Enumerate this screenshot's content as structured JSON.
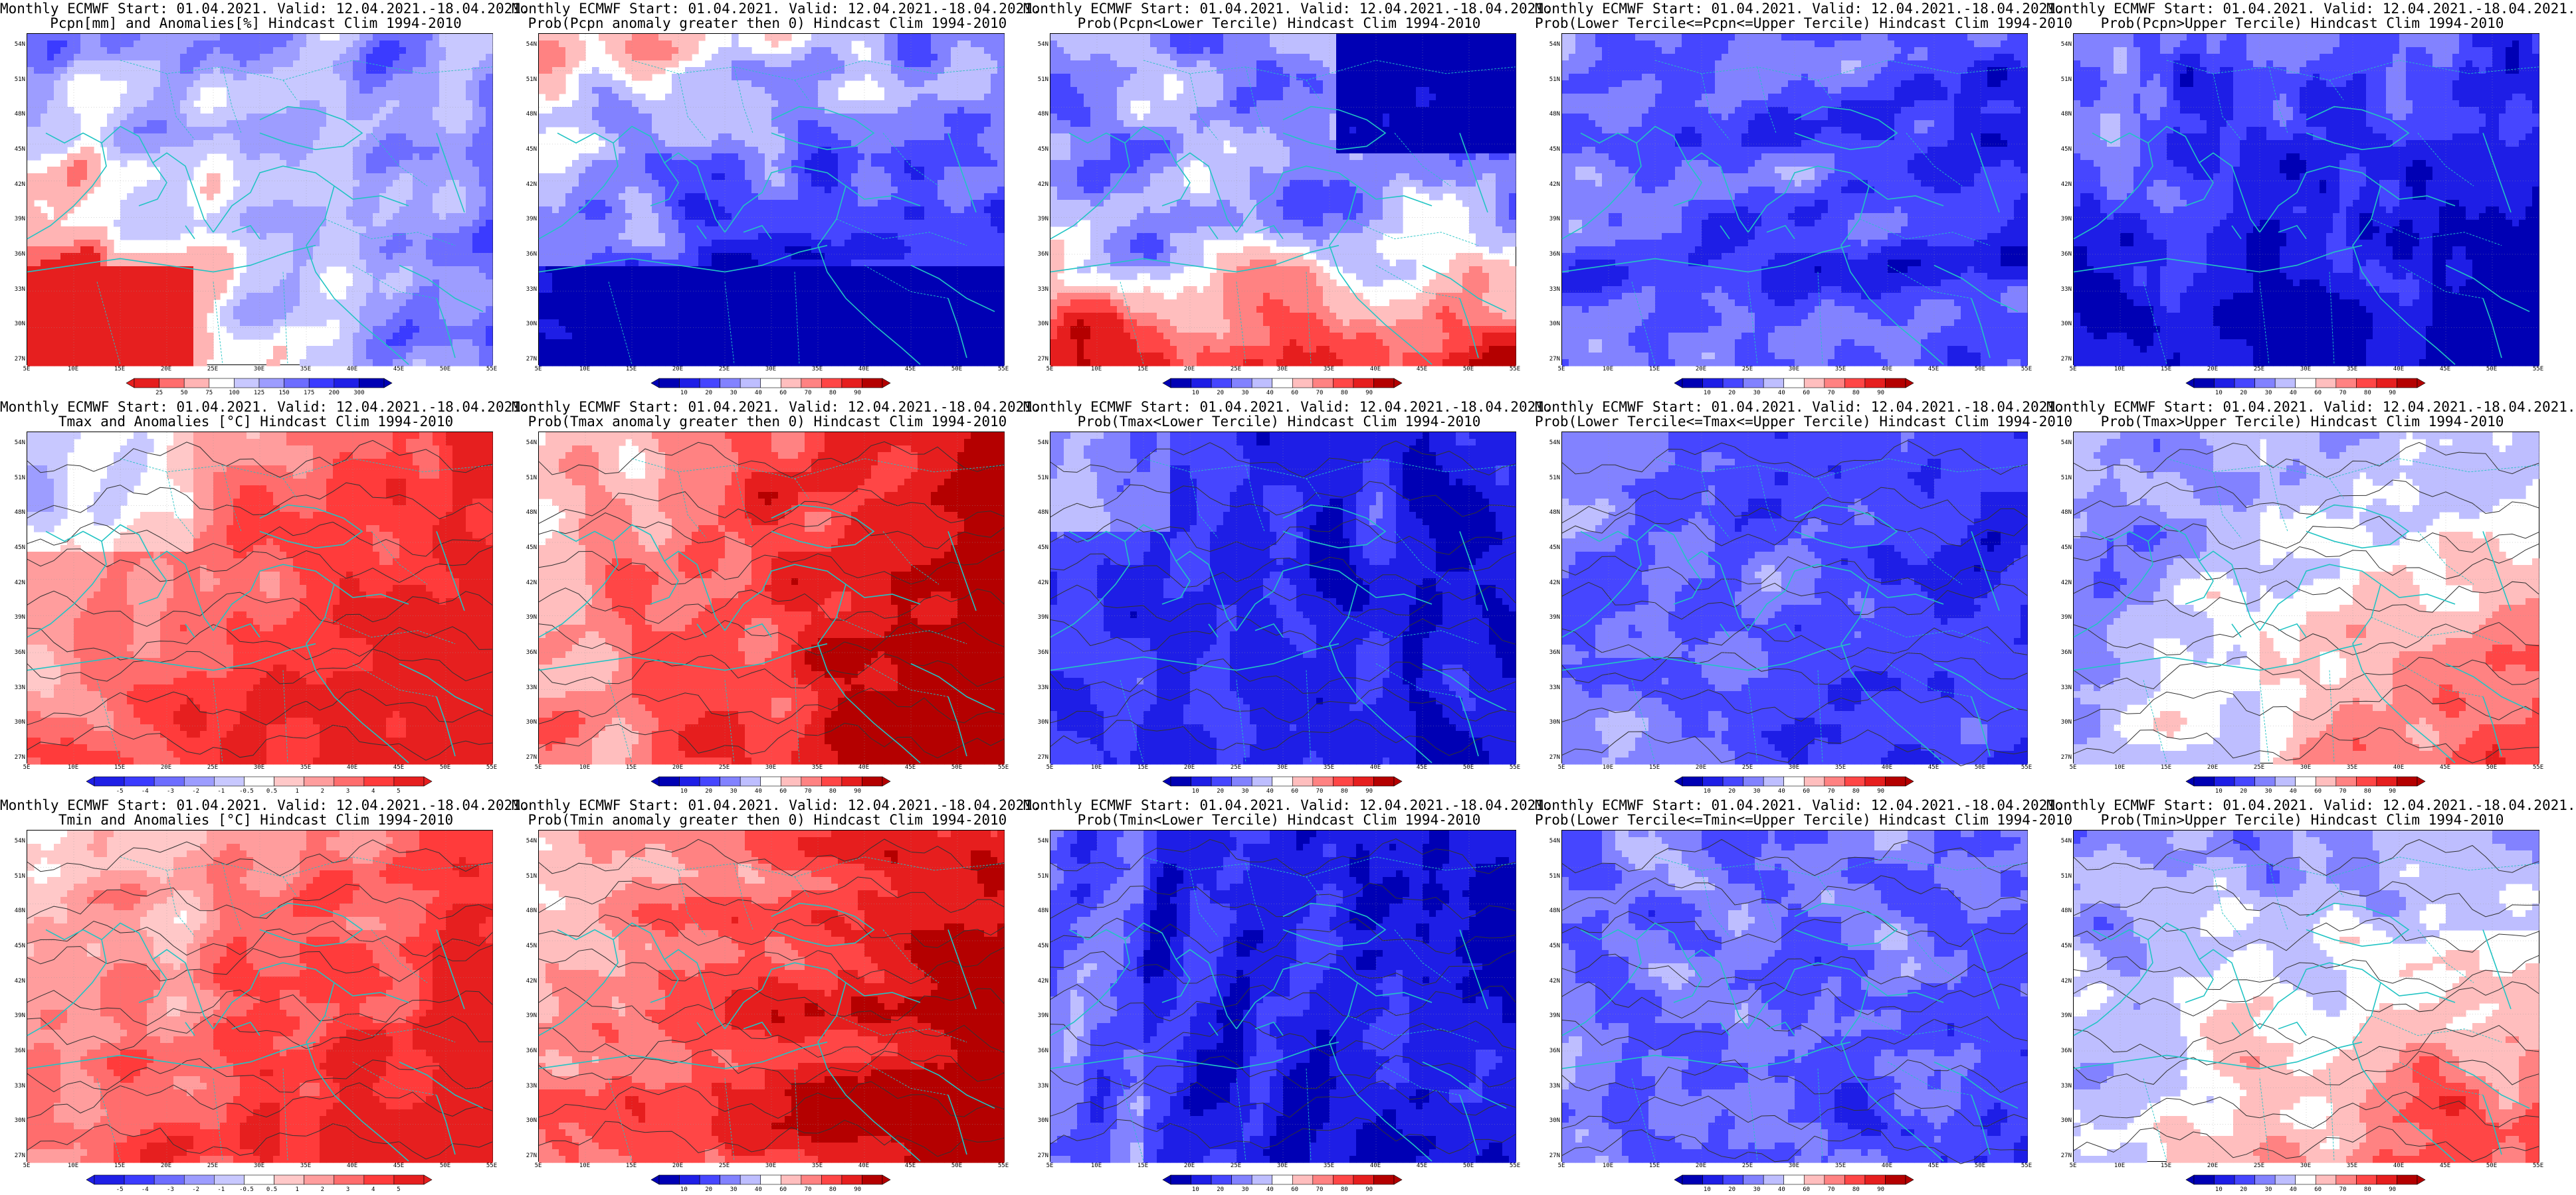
{
  "latitude_labels": [
    "54N",
    "51N",
    "48N",
    "45N",
    "42N",
    "39N",
    "36N",
    "33N",
    "30N",
    "27N"
  ],
  "longitude_labels": [
    "5E",
    "10E",
    "15E",
    "20E",
    "25E",
    "30E",
    "35E",
    "40E",
    "45E",
    "50E",
    "55E"
  ],
  "palettes": {
    "anom": [
      "#1f1fe6",
      "#3b3bff",
      "#6d6dff",
      "#9d9dff",
      "#c8c8ff",
      "#ffffff",
      "#ffc8c8",
      "#ff9d9d",
      "#ff6d6d",
      "#ff3b3b",
      "#e61f1f"
    ],
    "prob": [
      "#0000b4",
      "#1e1ee6",
      "#4646ff",
      "#8282ff",
      "#bebeff",
      "#ffffff",
      "#ffbebe",
      "#ff8282",
      "#ff4646",
      "#e61e1e",
      "#b40000"
    ],
    "pcpn": [
      "#e61f1f",
      "#ff6d6d",
      "#ffb4b4",
      "#ffffff",
      "#c8c8ff",
      "#9d9dff",
      "#6d6dff",
      "#3b3bff",
      "#1f1fe6",
      "#0000b4"
    ],
    "coast": "#22c4c4",
    "contour": "#333333"
  },
  "panels": [
    {
      "line1": "Monthly ECMWF Start: 01.04.2021. Valid: 12.04.2021.-18.04.2021.",
      "line2": "Pcpn[mm] and Anomalies[%] Hindcast Clim 1994-2010",
      "palette": "pcpn",
      "cb": [
        "25",
        "50",
        "75",
        "100",
        "125",
        "150",
        "175",
        "200",
        "300"
      ],
      "field": "pcpn_anom",
      "contours": false
    },
    {
      "line1": "Monthly ECMWF Start: 01.04.2021. Valid: 12.04.2021.-18.04.2021.",
      "line2": "Prob(Pcpn anomaly greater then 0) Hindcast Clim 1994-2010",
      "palette": "prob",
      "cb": [
        "10",
        "20",
        "30",
        "40",
        "60",
        "70",
        "80",
        "90"
      ],
      "field": "pcpn_gt0",
      "contours": false
    },
    {
      "line1": "Monthly ECMWF Start: 01.04.2021. Valid: 12.04.2021.-18.04.2021.",
      "line2": "Prob(Pcpn<Lower Tercile) Hindcast Clim 1994-2010",
      "palette": "prob",
      "cb": [
        "10",
        "20",
        "30",
        "40",
        "60",
        "70",
        "80",
        "90"
      ],
      "field": "pcpn_lower",
      "contours": false
    },
    {
      "line1": "Monthly ECMWF Start: 01.04.2021. Valid: 12.04.2021.-18.04.2021.",
      "line2": "Prob(Lower Tercile<=Pcpn<=Upper Tercile) Hindcast Clim 1994-2010",
      "palette": "prob",
      "cb": [
        "10",
        "20",
        "30",
        "40",
        "60",
        "70",
        "80",
        "90"
      ],
      "field": "pcpn_middle",
      "contours": false
    },
    {
      "line1": "Monthly ECMWF Start: 01.04.2021. Valid: 12.04.2021.-18.04.2021.",
      "line2": "Prob(Pcpn>Upper Tercile) Hindcast Clim 1994-2010",
      "palette": "prob",
      "cb": [
        "10",
        "20",
        "30",
        "40",
        "60",
        "70",
        "80",
        "90"
      ],
      "field": "pcpn_upper",
      "contours": false
    },
    {
      "line1": "Monthly ECMWF Start: 01.04.2021. Valid: 12.04.2021.-18.04.2021.",
      "line2": "Tmax and Anomalies [°C] Hindcast Clim 1994-2010",
      "palette": "anom",
      "cb": [
        "-5",
        "-4",
        "-3",
        "-2",
        "-1",
        "-0.5",
        "0.5",
        "1",
        "2",
        "3",
        "4",
        "5"
      ],
      "field": "tmax_anom",
      "contours": true
    },
    {
      "line1": "Monthly ECMWF Start: 01.04.2021. Valid: 12.04.2021.-18.04.2021.",
      "line2": "Prob(Tmax anomaly greater then 0) Hindcast Clim 1994-2010",
      "palette": "prob",
      "cb": [
        "10",
        "20",
        "30",
        "40",
        "60",
        "70",
        "80",
        "90"
      ],
      "field": "tmax_gt0",
      "contours": true
    },
    {
      "line1": "Monthly ECMWF Start: 01.04.2021. Valid: 12.04.2021.-18.04.2021.",
      "line2": "Prob(Tmax<Lower Tercile) Hindcast Clim 1994-2010",
      "palette": "prob",
      "cb": [
        "10",
        "20",
        "30",
        "40",
        "60",
        "70",
        "80",
        "90"
      ],
      "field": "tmax_lower",
      "contours": true
    },
    {
      "line1": "Monthly ECMWF Start: 01.04.2021. Valid: 12.04.2021.-18.04.2021.",
      "line2": "Prob(Lower Tercile<=Tmax<=Upper Tercile) Hindcast Clim 1994-2010",
      "palette": "prob",
      "cb": [
        "10",
        "20",
        "30",
        "40",
        "60",
        "70",
        "80",
        "90"
      ],
      "field": "tmax_middle",
      "contours": true
    },
    {
      "line1": "Monthly ECMWF Start: 01.04.2021. Valid: 12.04.2021.-18.04.2021.",
      "line2": "Prob(Tmax>Upper Tercile) Hindcast Clim 1994-2010",
      "palette": "prob",
      "cb": [
        "10",
        "20",
        "30",
        "40",
        "60",
        "70",
        "80",
        "90"
      ],
      "field": "tmax_upper",
      "contours": true
    },
    {
      "line1": "Monthly ECMWF Start: 01.04.2021. Valid: 12.04.2021.-18.04.2021.",
      "line2": "Tmin and Anomalies [°C] Hindcast Clim 1994-2010",
      "palette": "anom",
      "cb": [
        "-5",
        "-4",
        "-3",
        "-2",
        "-1",
        "-0.5",
        "0.5",
        "1",
        "2",
        "3",
        "4",
        "5"
      ],
      "field": "tmin_anom",
      "contours": true
    },
    {
      "line1": "Monthly ECMWF Start: 01.04.2021. Valid: 12.04.2021.-18.04.2021.",
      "line2": "Prob(Tmin anomaly greater then 0) Hindcast Clim 1994-2010",
      "palette": "prob",
      "cb": [
        "10",
        "20",
        "30",
        "40",
        "60",
        "70",
        "80",
        "90"
      ],
      "field": "tmin_gt0",
      "contours": true
    },
    {
      "line1": "Monthly ECMWF Start: 01.04.2021. Valid: 12.04.2021.-18.04.2021.",
      "line2": "Prob(Tmin<Lower Tercile) Hindcast Clim 1994-2010",
      "palette": "prob",
      "cb": [
        "10",
        "20",
        "30",
        "40",
        "60",
        "70",
        "80",
        "90"
      ],
      "field": "tmin_lower",
      "contours": true
    },
    {
      "line1": "Monthly ECMWF Start: 01.04.2021. Valid: 12.04.2021.-18.04.2021.",
      "line2": "Prob(Lower Tercile<=Tmin<=Upper Tercile) Hindcast Clim 1994-2010",
      "palette": "prob",
      "cb": [
        "10",
        "20",
        "30",
        "40",
        "60",
        "70",
        "80",
        "90"
      ],
      "field": "tmin_middle",
      "contours": true
    },
    {
      "line1": "Monthly ECMWF Start: 01.04.2021. Valid: 12.04.2021.-18.04.2021.",
      "line2": "Prob(Tmin>Upper Tercile) Hindcast Clim 1994-2010",
      "palette": "prob",
      "cb": [
        "10",
        "20",
        "30",
        "40",
        "60",
        "70",
        "80",
        "90"
      ],
      "field": "tmin_upper",
      "contours": true
    }
  ]
}
